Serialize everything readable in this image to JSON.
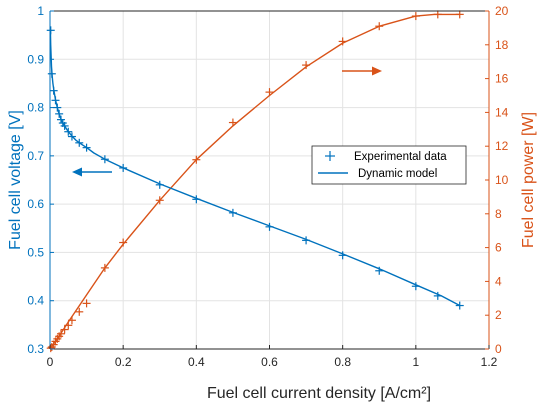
{
  "chart_data": {
    "type": "line",
    "xlabel": "Fuel cell current density [A/cm²]",
    "ylabel_left": "Fuel cell voltage [V]",
    "ylabel_right": "Fuel cell power [W]",
    "xlim": [
      0,
      1.2
    ],
    "ylim_left": [
      0.3,
      1
    ],
    "ylim_right": [
      0,
      20
    ],
    "x_ticks": [
      "0",
      "0.2",
      "0.4",
      "0.6",
      "0.8",
      "1",
      "1.2"
    ],
    "y_left_ticks": [
      "0.3",
      "0.4",
      "0.5",
      "0.6",
      "0.7",
      "0.8",
      "0.9",
      "1"
    ],
    "y_right_ticks": [
      "0",
      "2",
      "4",
      "6",
      "8",
      "10",
      "12",
      "14",
      "16",
      "18",
      "20"
    ],
    "grid": true,
    "legend_position": "center-right",
    "legend": [
      "Experimental data",
      "Dynamic model"
    ],
    "colors": {
      "voltage": "#0072BD",
      "power": "#D95319"
    },
    "voltage": {
      "model_x": [
        0.001,
        0.002,
        0.004,
        0.006,
        0.008,
        0.01,
        0.015,
        0.02,
        0.025,
        0.03,
        0.035,
        0.04,
        0.05,
        0.06,
        0.07,
        0.08,
        0.09,
        0.1,
        0.12,
        0.15,
        0.2,
        0.3,
        0.4,
        0.5,
        0.6,
        0.7,
        0.8,
        0.9,
        1.0,
        1.07,
        1.12
      ],
      "model_y": [
        0.96,
        0.93,
        0.885,
        0.865,
        0.85,
        0.838,
        0.816,
        0.8,
        0.787,
        0.776,
        0.768,
        0.762,
        0.75,
        0.741,
        0.733,
        0.727,
        0.722,
        0.717,
        0.706,
        0.693,
        0.675,
        0.642,
        0.612,
        0.583,
        0.555,
        0.527,
        0.497,
        0.466,
        0.433,
        0.41,
        0.39
      ],
      "exp_x": [
        0.002,
        0.005,
        0.01,
        0.015,
        0.02,
        0.025,
        0.03,
        0.035,
        0.04,
        0.05,
        0.06,
        0.08,
        0.1,
        0.15,
        0.2,
        0.3,
        0.4,
        0.5,
        0.6,
        0.7,
        0.8,
        0.9,
        1.0,
        1.06,
        1.12
      ],
      "exp_y": [
        0.96,
        0.87,
        0.835,
        0.815,
        0.8,
        0.787,
        0.775,
        0.768,
        0.762,
        0.75,
        0.74,
        0.727,
        0.717,
        0.693,
        0.675,
        0.64,
        0.61,
        0.582,
        0.553,
        0.525,
        0.494,
        0.462,
        0.43,
        0.41,
        0.39
      ]
    },
    "power": {
      "model_x": [
        0,
        0.02,
        0.05,
        0.1,
        0.15,
        0.2,
        0.3,
        0.4,
        0.5,
        0.6,
        0.7,
        0.8,
        0.9,
        1.0,
        1.05,
        1.1,
        1.12
      ],
      "model_y": [
        0,
        0.6,
        1.6,
        3.2,
        4.8,
        6.2,
        8.8,
        11.2,
        13.2,
        15.0,
        16.7,
        18.1,
        19.1,
        19.7,
        19.8,
        19.8,
        19.8
      ],
      "exp_x": [
        0.002,
        0.005,
        0.01,
        0.015,
        0.02,
        0.025,
        0.03,
        0.04,
        0.05,
        0.06,
        0.08,
        0.1,
        0.15,
        0.2,
        0.3,
        0.4,
        0.5,
        0.6,
        0.7,
        0.8,
        0.9,
        1.0,
        1.06,
        1.12
      ],
      "exp_y": [
        0.05,
        0.12,
        0.26,
        0.45,
        0.6,
        0.75,
        0.9,
        1.15,
        1.4,
        1.7,
        2.2,
        2.7,
        4.8,
        6.3,
        8.8,
        11.2,
        13.4,
        15.2,
        16.8,
        18.2,
        19.1,
        19.7,
        19.8,
        19.8
      ]
    }
  }
}
